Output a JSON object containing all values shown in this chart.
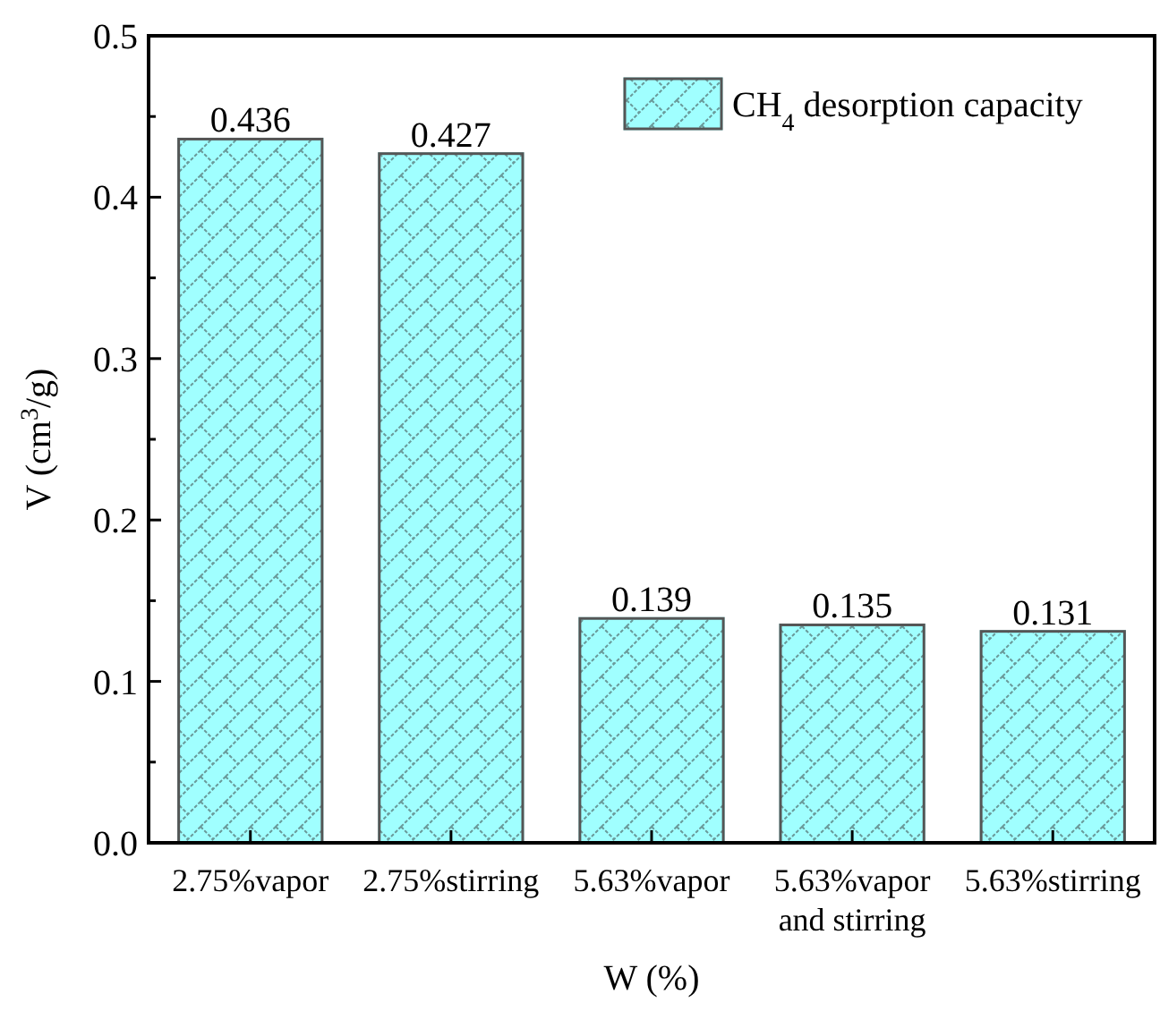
{
  "chart_data": {
    "type": "bar",
    "xlabel": "W (%)",
    "ylabel": "V (cm$^{3}$/g)",
    "categories": [
      "2.75%vapor",
      "2.75%stirring",
      "5.63%vapor",
      "5.63%vapor\nand stirring",
      "5.63%stirring"
    ],
    "series": [
      {
        "name": "CH$_{4}$ desorption capacity",
        "color": "#a0ffff",
        "values": [
          0.436,
          0.427,
          0.139,
          0.135,
          0.131
        ]
      }
    ],
    "ylim": [
      0,
      0.5
    ],
    "yticks": [
      {
        "value": 0,
        "label": "0.0"
      },
      0.1,
      0.2,
      0.3,
      0.4,
      0.5
    ],
    "data_labels": true,
    "legend": "top right",
    "grid": false
  }
}
